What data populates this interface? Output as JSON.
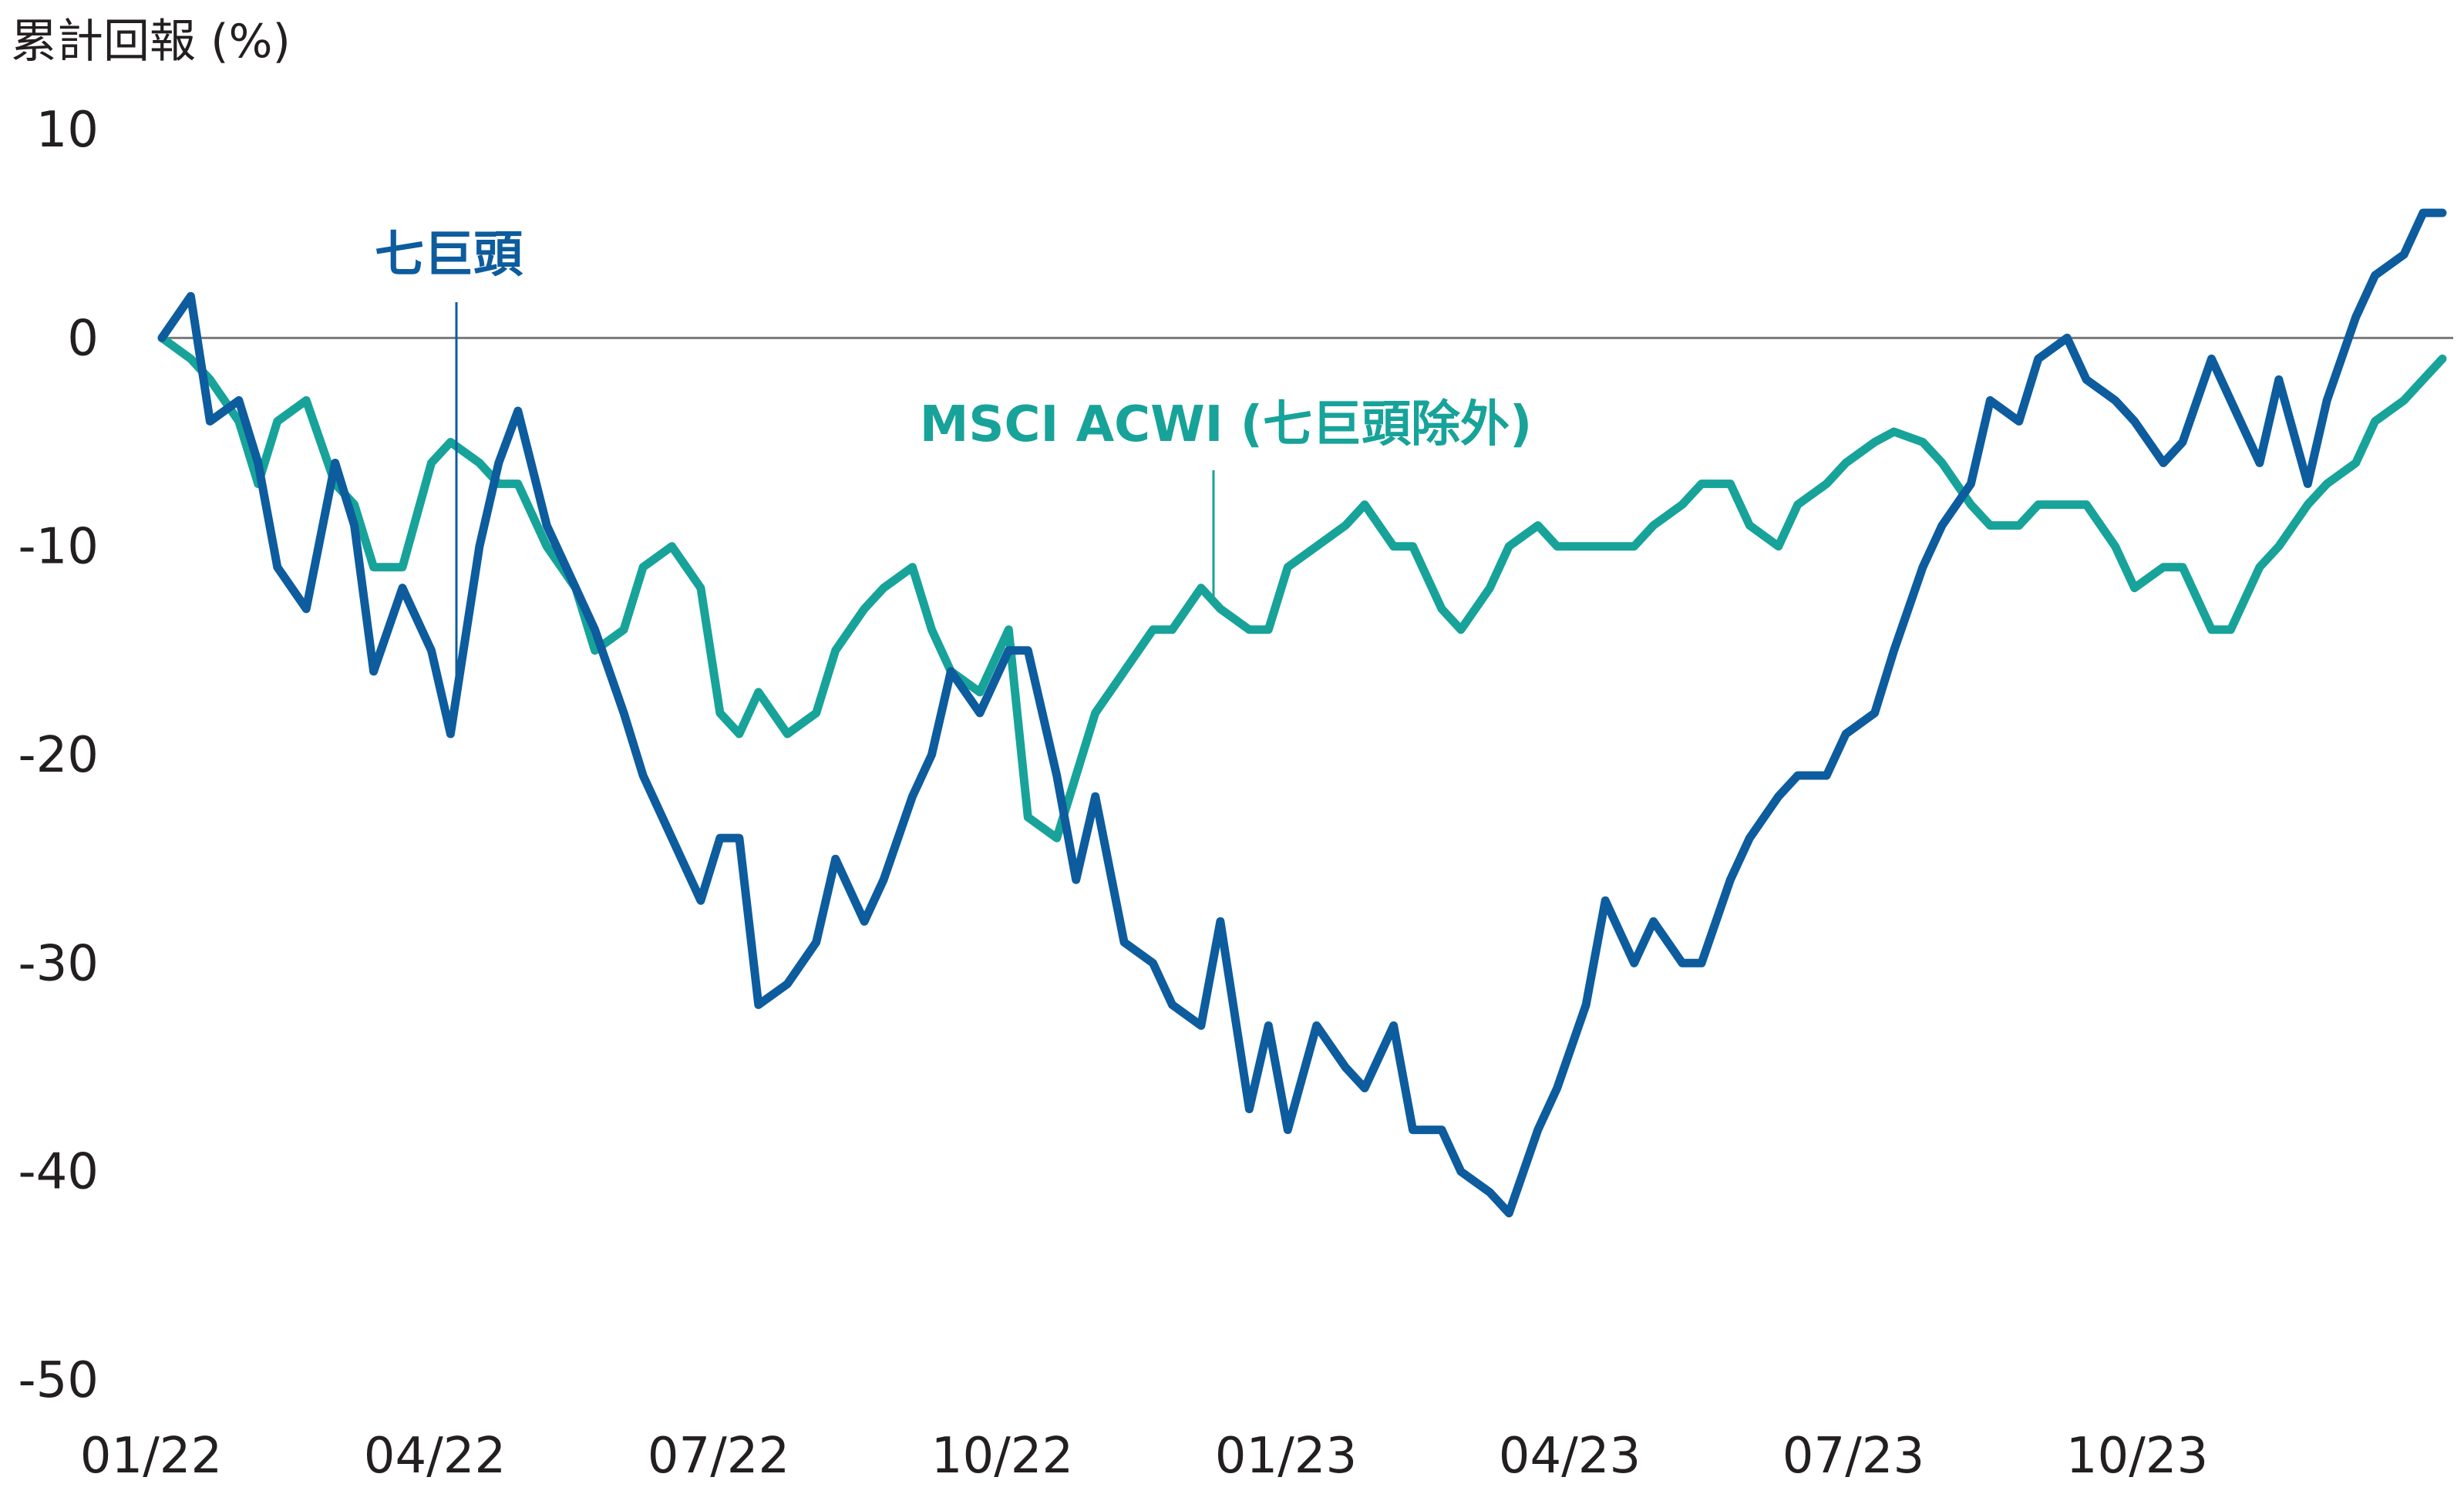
{
  "chart_data": {
    "type": "line",
    "ylabel": "累計回報 (%)",
    "ylim": [
      -50,
      10
    ],
    "yticks": [
      10,
      0,
      -10,
      -20,
      -30,
      -40,
      -50
    ],
    "xticks": [
      "01/22",
      "04/22",
      "07/22",
      "10/22",
      "01/23",
      "04/23",
      "07/23",
      "10/23"
    ],
    "grid": false,
    "zero_line": true,
    "legend": "inline annotations",
    "series": [
      {
        "name": "七巨頭",
        "color": "#0d5c9e",
        "x": [
          0.0,
          0.3,
          0.5,
          0.8,
          1.0,
          1.2,
          1.5,
          1.8,
          2.0,
          2.2,
          2.5,
          2.8,
          3.0,
          3.3,
          3.5,
          3.7,
          4.0,
          4.3,
          4.5,
          4.8,
          5.0,
          5.3,
          5.6,
          5.8,
          6.0,
          6.2,
          6.5,
          6.8,
          7.0,
          7.3,
          7.5,
          7.8,
          8.0,
          8.2,
          8.5,
          8.8,
          9.0,
          9.3,
          9.5,
          9.7,
          10.0,
          10.3,
          10.5,
          10.8,
          11.0,
          11.3,
          11.5,
          11.7,
          12.0,
          12.3,
          12.5,
          12.8,
          13.0,
          13.3,
          13.5,
          13.8,
          14.0,
          14.3,
          14.5,
          14.8,
          15.0,
          15.3,
          15.5,
          15.8,
          16.0,
          16.3,
          16.5,
          16.8,
          17.0,
          17.3,
          17.5,
          17.8,
          18.0,
          18.3,
          18.5,
          18.8,
          19.0,
          19.3,
          19.5,
          19.8,
          20.0,
          20.3,
          20.5,
          20.8,
          21.0,
          21.3,
          21.5,
          21.8,
          22.0,
          22.3,
          22.5,
          22.8,
          23.0,
          23.3,
          23.5,
          23.7
        ],
        "y": [
          0,
          2,
          -4,
          -3,
          -6,
          -11,
          -13,
          -6,
          -9,
          -16,
          -12,
          -15,
          -19,
          -10,
          -6,
          -3.5,
          -9,
          -12,
          -14,
          -18,
          -21,
          -24,
          -27,
          -24,
          -24,
          -32,
          -31,
          -29,
          -25,
          -28,
          -26,
          -22,
          -20,
          -16,
          -18,
          -15,
          -15,
          -21,
          -26,
          -22,
          -29,
          -30,
          -32,
          -33,
          -28,
          -37,
          -33,
          -38,
          -33,
          -35,
          -36,
          -33,
          -38,
          -38,
          -40,
          -41,
          -42,
          -38,
          -36,
          -32,
          -27,
          -30,
          -28,
          -30,
          -30,
          -26,
          -24,
          -22,
          -21,
          -21,
          -19,
          -18,
          -15,
          -11,
          -9,
          -7,
          -3,
          -4,
          -1,
          0,
          -2,
          -3,
          -4,
          -6,
          -5,
          -1,
          -3,
          -6,
          -2,
          -7,
          -3,
          1,
          3,
          4,
          6,
          6
        ]
      },
      {
        "name": "MSCI ACWI (七巨頭除外)",
        "color": "#17a399",
        "x": [
          0.0,
          0.3,
          0.5,
          0.8,
          1.0,
          1.2,
          1.5,
          1.8,
          2.0,
          2.2,
          2.5,
          2.8,
          3.0,
          3.3,
          3.5,
          3.7,
          4.0,
          4.3,
          4.5,
          4.8,
          5.0,
          5.3,
          5.6,
          5.8,
          6.0,
          6.2,
          6.5,
          6.8,
          7.0,
          7.3,
          7.5,
          7.8,
          8.0,
          8.2,
          8.5,
          8.8,
          9.0,
          9.3,
          9.5,
          9.7,
          10.0,
          10.3,
          10.5,
          10.8,
          11.0,
          11.3,
          11.5,
          11.7,
          12.0,
          12.3,
          12.5,
          12.8,
          13.0,
          13.3,
          13.5,
          13.8,
          14.0,
          14.3,
          14.5,
          14.8,
          15.0,
          15.3,
          15.5,
          15.8,
          16.0,
          16.3,
          16.5,
          16.8,
          17.0,
          17.3,
          17.5,
          17.8,
          18.0,
          18.3,
          18.5,
          18.8,
          19.0,
          19.3,
          19.5,
          19.8,
          20.0,
          20.3,
          20.5,
          20.8,
          21.0,
          21.3,
          21.5,
          21.8,
          22.0,
          22.3,
          22.5,
          22.8,
          23.0,
          23.3,
          23.5,
          23.7
        ],
        "y": [
          0,
          -1,
          -2,
          -4,
          -7,
          -4,
          -3,
          -7,
          -8,
          -11,
          -11,
          -6,
          -5,
          -6,
          -7,
          -7,
          -10,
          -12,
          -15,
          -14,
          -11,
          -10,
          -12,
          -18,
          -19,
          -17,
          -19,
          -18,
          -15,
          -13,
          -12,
          -11,
          -14,
          -16,
          -17,
          -14,
          -23,
          -24,
          -21,
          -18,
          -16,
          -14,
          -14,
          -12,
          -13,
          -14,
          -14,
          -11,
          -10,
          -9,
          -8,
          -10,
          -10,
          -13,
          -14,
          -12,
          -10,
          -9,
          -10,
          -10,
          -10,
          -10,
          -9,
          -8,
          -7,
          -7,
          -9,
          -10,
          -8,
          -7,
          -6,
          -5,
          -4.5,
          -5,
          -6,
          -8,
          -9,
          -9,
          -8,
          -8,
          -8,
          -10,
          -12,
          -11,
          -11,
          -14,
          -14,
          -11,
          -10,
          -8,
          -7,
          -6,
          -4,
          -3,
          -2,
          -1
        ]
      }
    ],
    "annotations": [
      {
        "text": "七巨頭",
        "series": 0
      },
      {
        "text": "MSCI ACWI (七巨頭除外)",
        "series": 1
      }
    ]
  }
}
